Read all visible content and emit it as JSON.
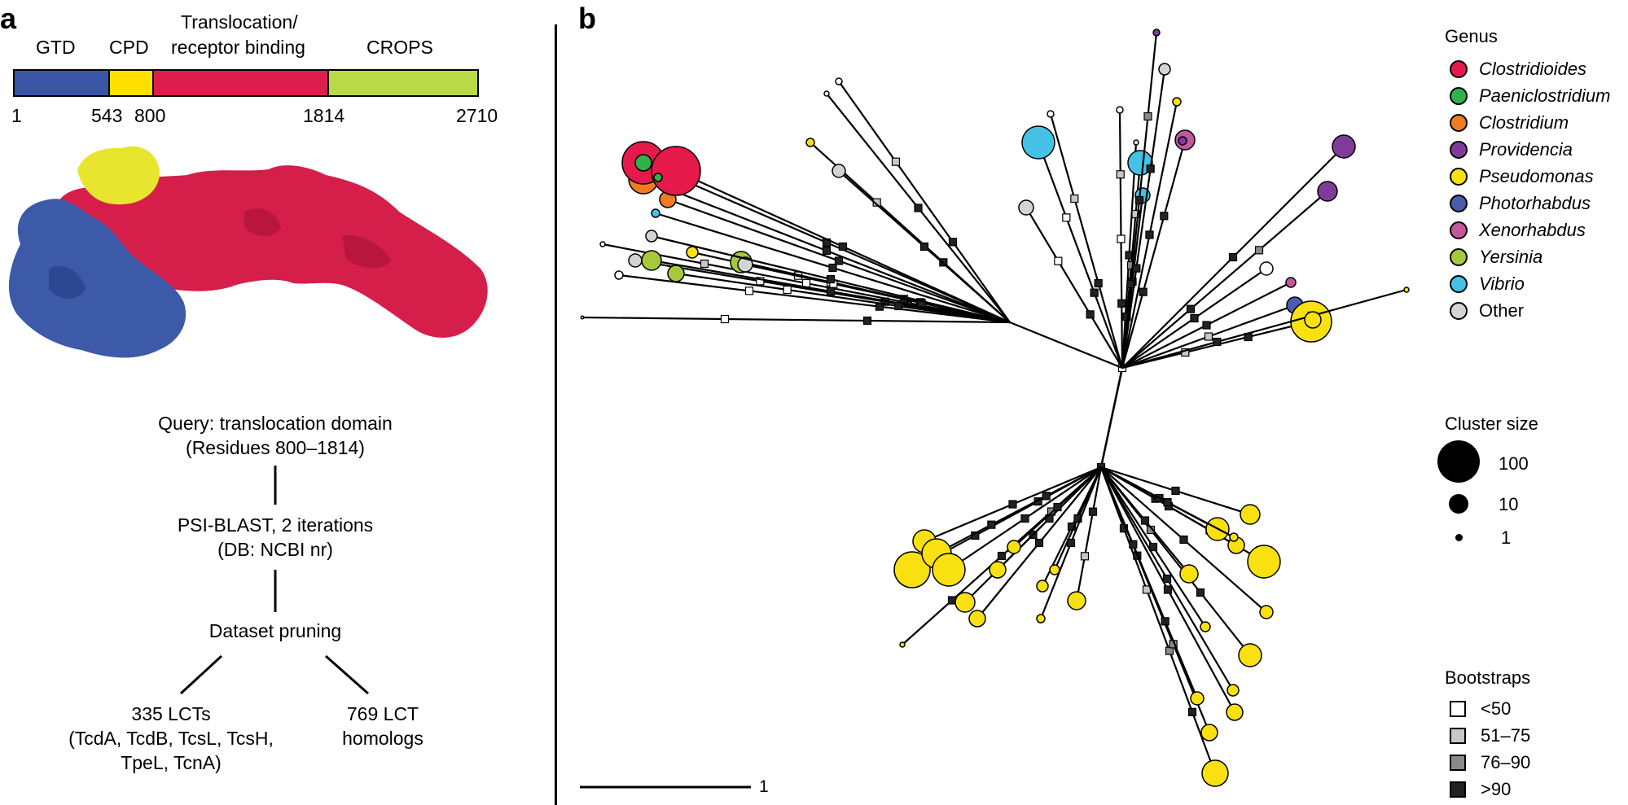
{
  "panel_a": {
    "label": "a",
    "domains": [
      {
        "name": "GTD",
        "color": "#3b55a6"
      },
      {
        "name": "CPD",
        "color": "#ffdf00"
      },
      {
        "name": "Translocation/",
        "name2": "receptor binding",
        "color": "#dc1e4c"
      },
      {
        "name": "CROPS",
        "color": "#bad946"
      }
    ],
    "positions": [
      "1",
      "543",
      "800",
      "1814",
      "2710"
    ],
    "flow": {
      "query_line1": "Query: translocation domain",
      "query_line2": "(Residues 800–1814)",
      "blast_line1": "PSI-BLAST, 2 iterations",
      "blast_line2": "(DB: NCBI nr)",
      "pruning": "Dataset pruning",
      "lct_line1": "335 LCTs",
      "lct_line2": "(TcdA, TcdB, TcsL, TcsH,",
      "lct_line3": "TpeL, TcnA)",
      "homolog_line1": "769 LCT",
      "homolog_line2": "homologs"
    }
  },
  "panel_b": {
    "label": "b",
    "scale_label": "1",
    "legend": {
      "genus_title": "Genus",
      "genera": [
        {
          "name": "Clostridioides",
          "color": "#e6194b",
          "italic": true
        },
        {
          "name": "Paeniclostridium",
          "color": "#2eb24a",
          "italic": true
        },
        {
          "name": "Clostridium",
          "color": "#f07b24",
          "italic": true
        },
        {
          "name": "Providencia",
          "color": "#7f3b9a",
          "italic": true
        },
        {
          "name": "Pseudomonas",
          "color": "#f9e011",
          "italic": true
        },
        {
          "name": "Photorhabdus",
          "color": "#4a5cac",
          "italic": true
        },
        {
          "name": "Xenorhabdus",
          "color": "#c4579e",
          "italic": true
        },
        {
          "name": "Yersinia",
          "color": "#a6c93c",
          "italic": true
        },
        {
          "name": "Vibrio",
          "color": "#46c1e6",
          "italic": true
        },
        {
          "name": "Other",
          "color": "#d4d4d4",
          "italic": false
        }
      ],
      "cluster_title": "Cluster size",
      "cluster_sizes": [
        "100",
        "10",
        "1"
      ],
      "bootstrap_title": "Bootstraps",
      "bootstraps": [
        {
          "label": "<50",
          "color": "#ffffff"
        },
        {
          "label": "51–75",
          "color": "#c8c8c8"
        },
        {
          "label": "76–90",
          "color": "#8a8a8a"
        },
        {
          "label": ">90",
          "color": "#222222"
        }
      ]
    }
  }
}
